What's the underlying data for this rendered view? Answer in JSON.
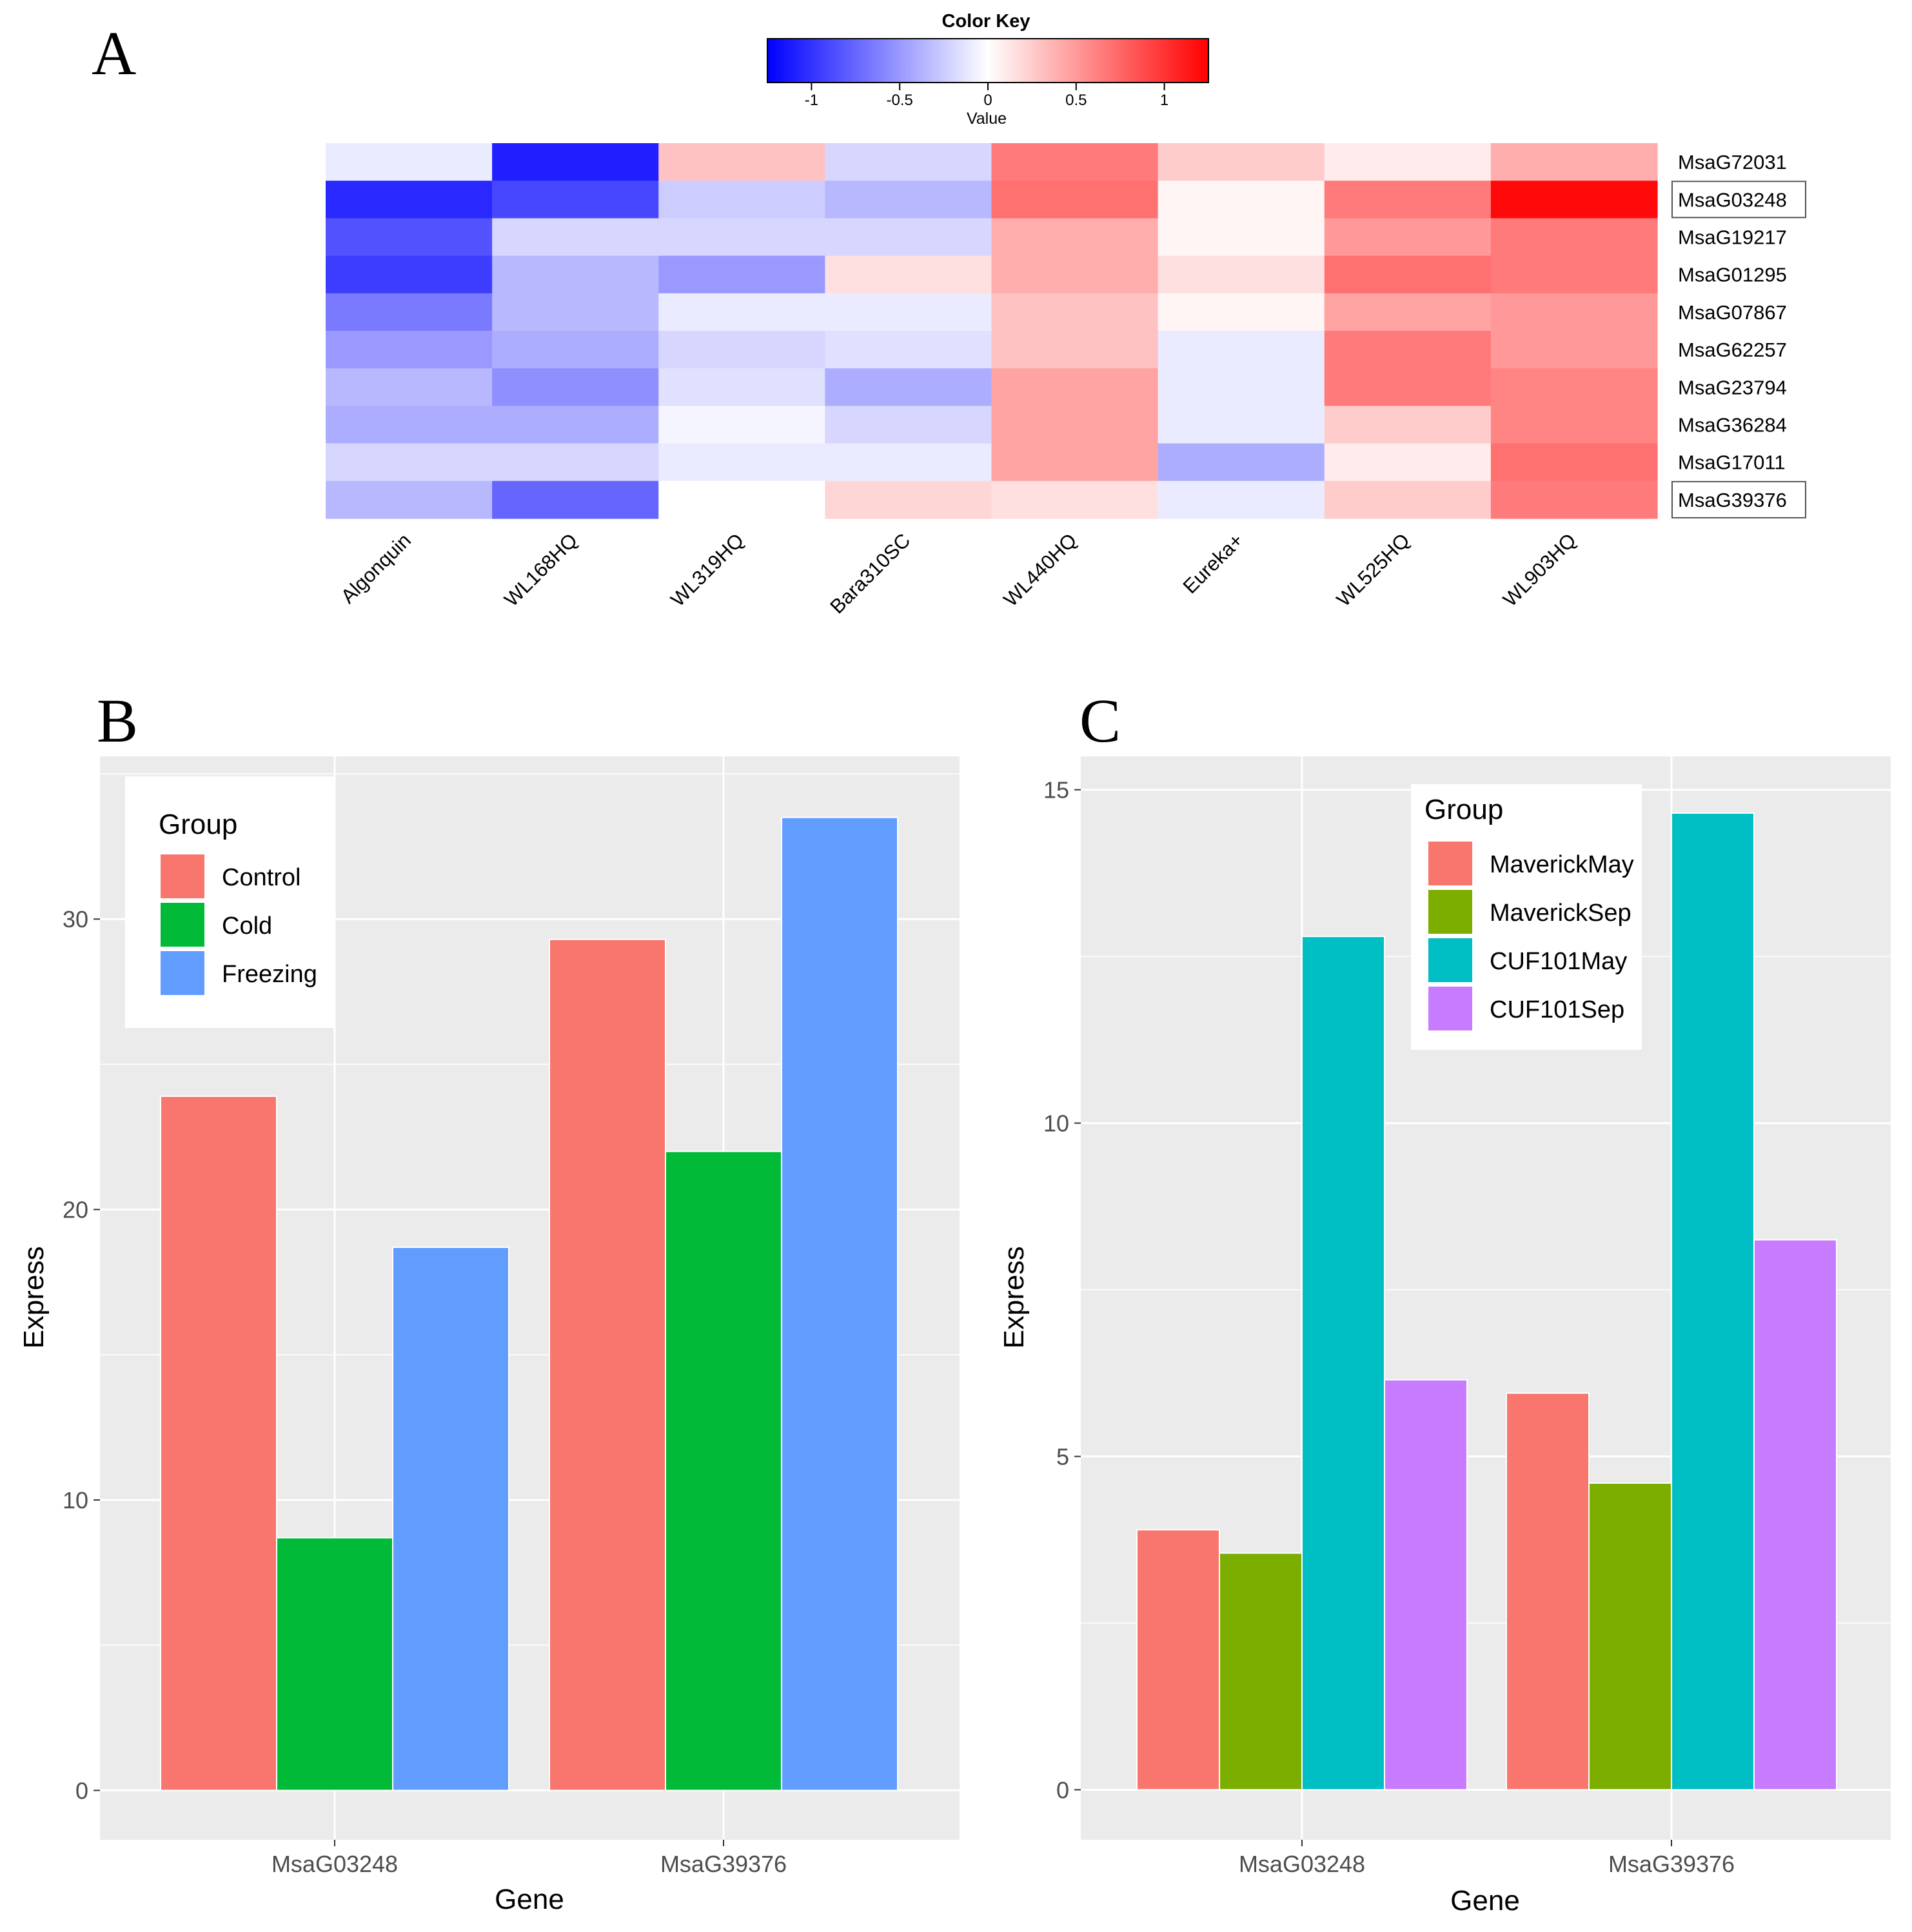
{
  "colors": {
    "panel_bg": "#EBEBEB",
    "grid_major": "#FFFFFF",
    "axis_text": "#4D4D4D",
    "heat_low": "#0000FF",
    "heat_mid": "#FFFFFF",
    "heat_high": "#FF0000"
  },
  "panels": {
    "A": {
      "letter": "A"
    },
    "B": {
      "letter": "B"
    },
    "C": {
      "letter": "C"
    }
  },
  "chart_data": [
    {
      "id": "A",
      "type": "heatmap",
      "title": "Color Key",
      "color_key": {
        "xlabel": "Value",
        "ticks": [
          -1,
          -0.5,
          0,
          0.5,
          1
        ],
        "tick_labels": [
          "-1",
          "-0.5",
          "0",
          "0.5",
          "1"
        ],
        "range": [
          -1.25,
          1.25
        ]
      },
      "columns": [
        "Algonquin",
        "WL168HQ",
        "WL319HQ",
        "Bara310SC",
        "WL440HQ",
        "Eureka+",
        "WL525HQ",
        "WL903HQ"
      ],
      "rows": [
        "MsaG72031",
        "MsaG03248",
        "MsaG19217",
        "MsaG01295",
        "MsaG07867",
        "MsaG62257",
        "MsaG23794",
        "MsaG36284",
        "MsaG17011",
        "MsaG39376"
      ],
      "highlighted_rows": [
        "MsaG03248",
        "MsaG39376"
      ],
      "values": [
        [
          -0.1,
          -1.1,
          0.3,
          -0.2,
          0.65,
          0.25,
          0.1,
          0.4
        ],
        [
          -1.05,
          -0.9,
          -0.25,
          -0.35,
          0.7,
          0.05,
          0.65,
          1.2
        ],
        [
          -0.85,
          -0.2,
          -0.2,
          -0.2,
          0.4,
          0.05,
          0.5,
          0.65
        ],
        [
          -0.95,
          -0.35,
          -0.5,
          0.15,
          0.4,
          0.15,
          0.7,
          0.65
        ],
        [
          -0.65,
          -0.35,
          -0.1,
          -0.1,
          0.3,
          0.05,
          0.45,
          0.5
        ],
        [
          -0.5,
          -0.4,
          -0.2,
          -0.15,
          0.3,
          -0.1,
          0.65,
          0.5
        ],
        [
          -0.35,
          -0.55,
          -0.15,
          -0.4,
          0.45,
          -0.1,
          0.65,
          0.6
        ],
        [
          -0.4,
          -0.4,
          -0.05,
          -0.2,
          0.45,
          -0.1,
          0.25,
          0.6
        ],
        [
          -0.2,
          -0.2,
          -0.1,
          -0.1,
          0.45,
          -0.4,
          0.1,
          0.7
        ],
        [
          -0.35,
          -0.75,
          0.0,
          0.2,
          0.15,
          -0.1,
          0.25,
          0.65
        ]
      ]
    },
    {
      "id": "B",
      "type": "bar",
      "xlabel": "Gene",
      "ylabel": "Express",
      "categories": [
        "MsaG03248",
        "MsaG39376"
      ],
      "ylim": [
        -1.7,
        35.6
      ],
      "yticks": [
        0,
        10,
        20,
        30
      ],
      "legend": {
        "title": "Group",
        "position": "top-left"
      },
      "series": [
        {
          "name": "Control",
          "color": "#F8766D",
          "values": [
            23.9,
            29.3
          ]
        },
        {
          "name": "Cold",
          "color": "#00BA38",
          "values": [
            8.7,
            22.0
          ]
        },
        {
          "name": "Freezing",
          "color": "#619CFF",
          "values": [
            18.7,
            33.5
          ]
        }
      ]
    },
    {
      "id": "C",
      "type": "bar",
      "xlabel": "Gene",
      "ylabel": "Express",
      "categories": [
        "MsaG03248",
        "MsaG39376"
      ],
      "ylim": [
        -0.75,
        15.5
      ],
      "yticks": [
        0,
        5,
        10,
        15
      ],
      "legend": {
        "title": "Group",
        "position": "top-center"
      },
      "series": [
        {
          "name": "MaverickMay",
          "color": "#F8766D",
          "values": [
            3.9,
            5.95
          ]
        },
        {
          "name": "MaverickSep",
          "color": "#7CAE00",
          "values": [
            3.55,
            4.6
          ]
        },
        {
          "name": "CUF101May",
          "color": "#00BFC4",
          "values": [
            12.8,
            14.65
          ]
        },
        {
          "name": "CUF101Sep",
          "color": "#C77CFF",
          "values": [
            6.15,
            8.25
          ]
        }
      ]
    }
  ]
}
